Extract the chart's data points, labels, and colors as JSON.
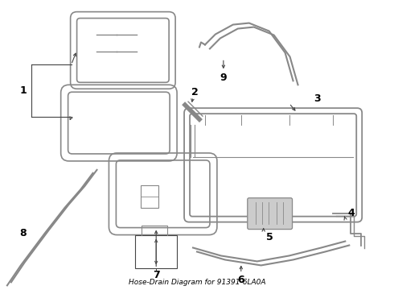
{
  "title": "Hose-Drain Diagram for 91391-6LA0A",
  "background_color": "#ffffff",
  "line_color": "#888888",
  "dark_line_color": "#444444",
  "text_color": "#000000",
  "figsize": [
    4.9,
    3.6
  ],
  "dpi": 100
}
